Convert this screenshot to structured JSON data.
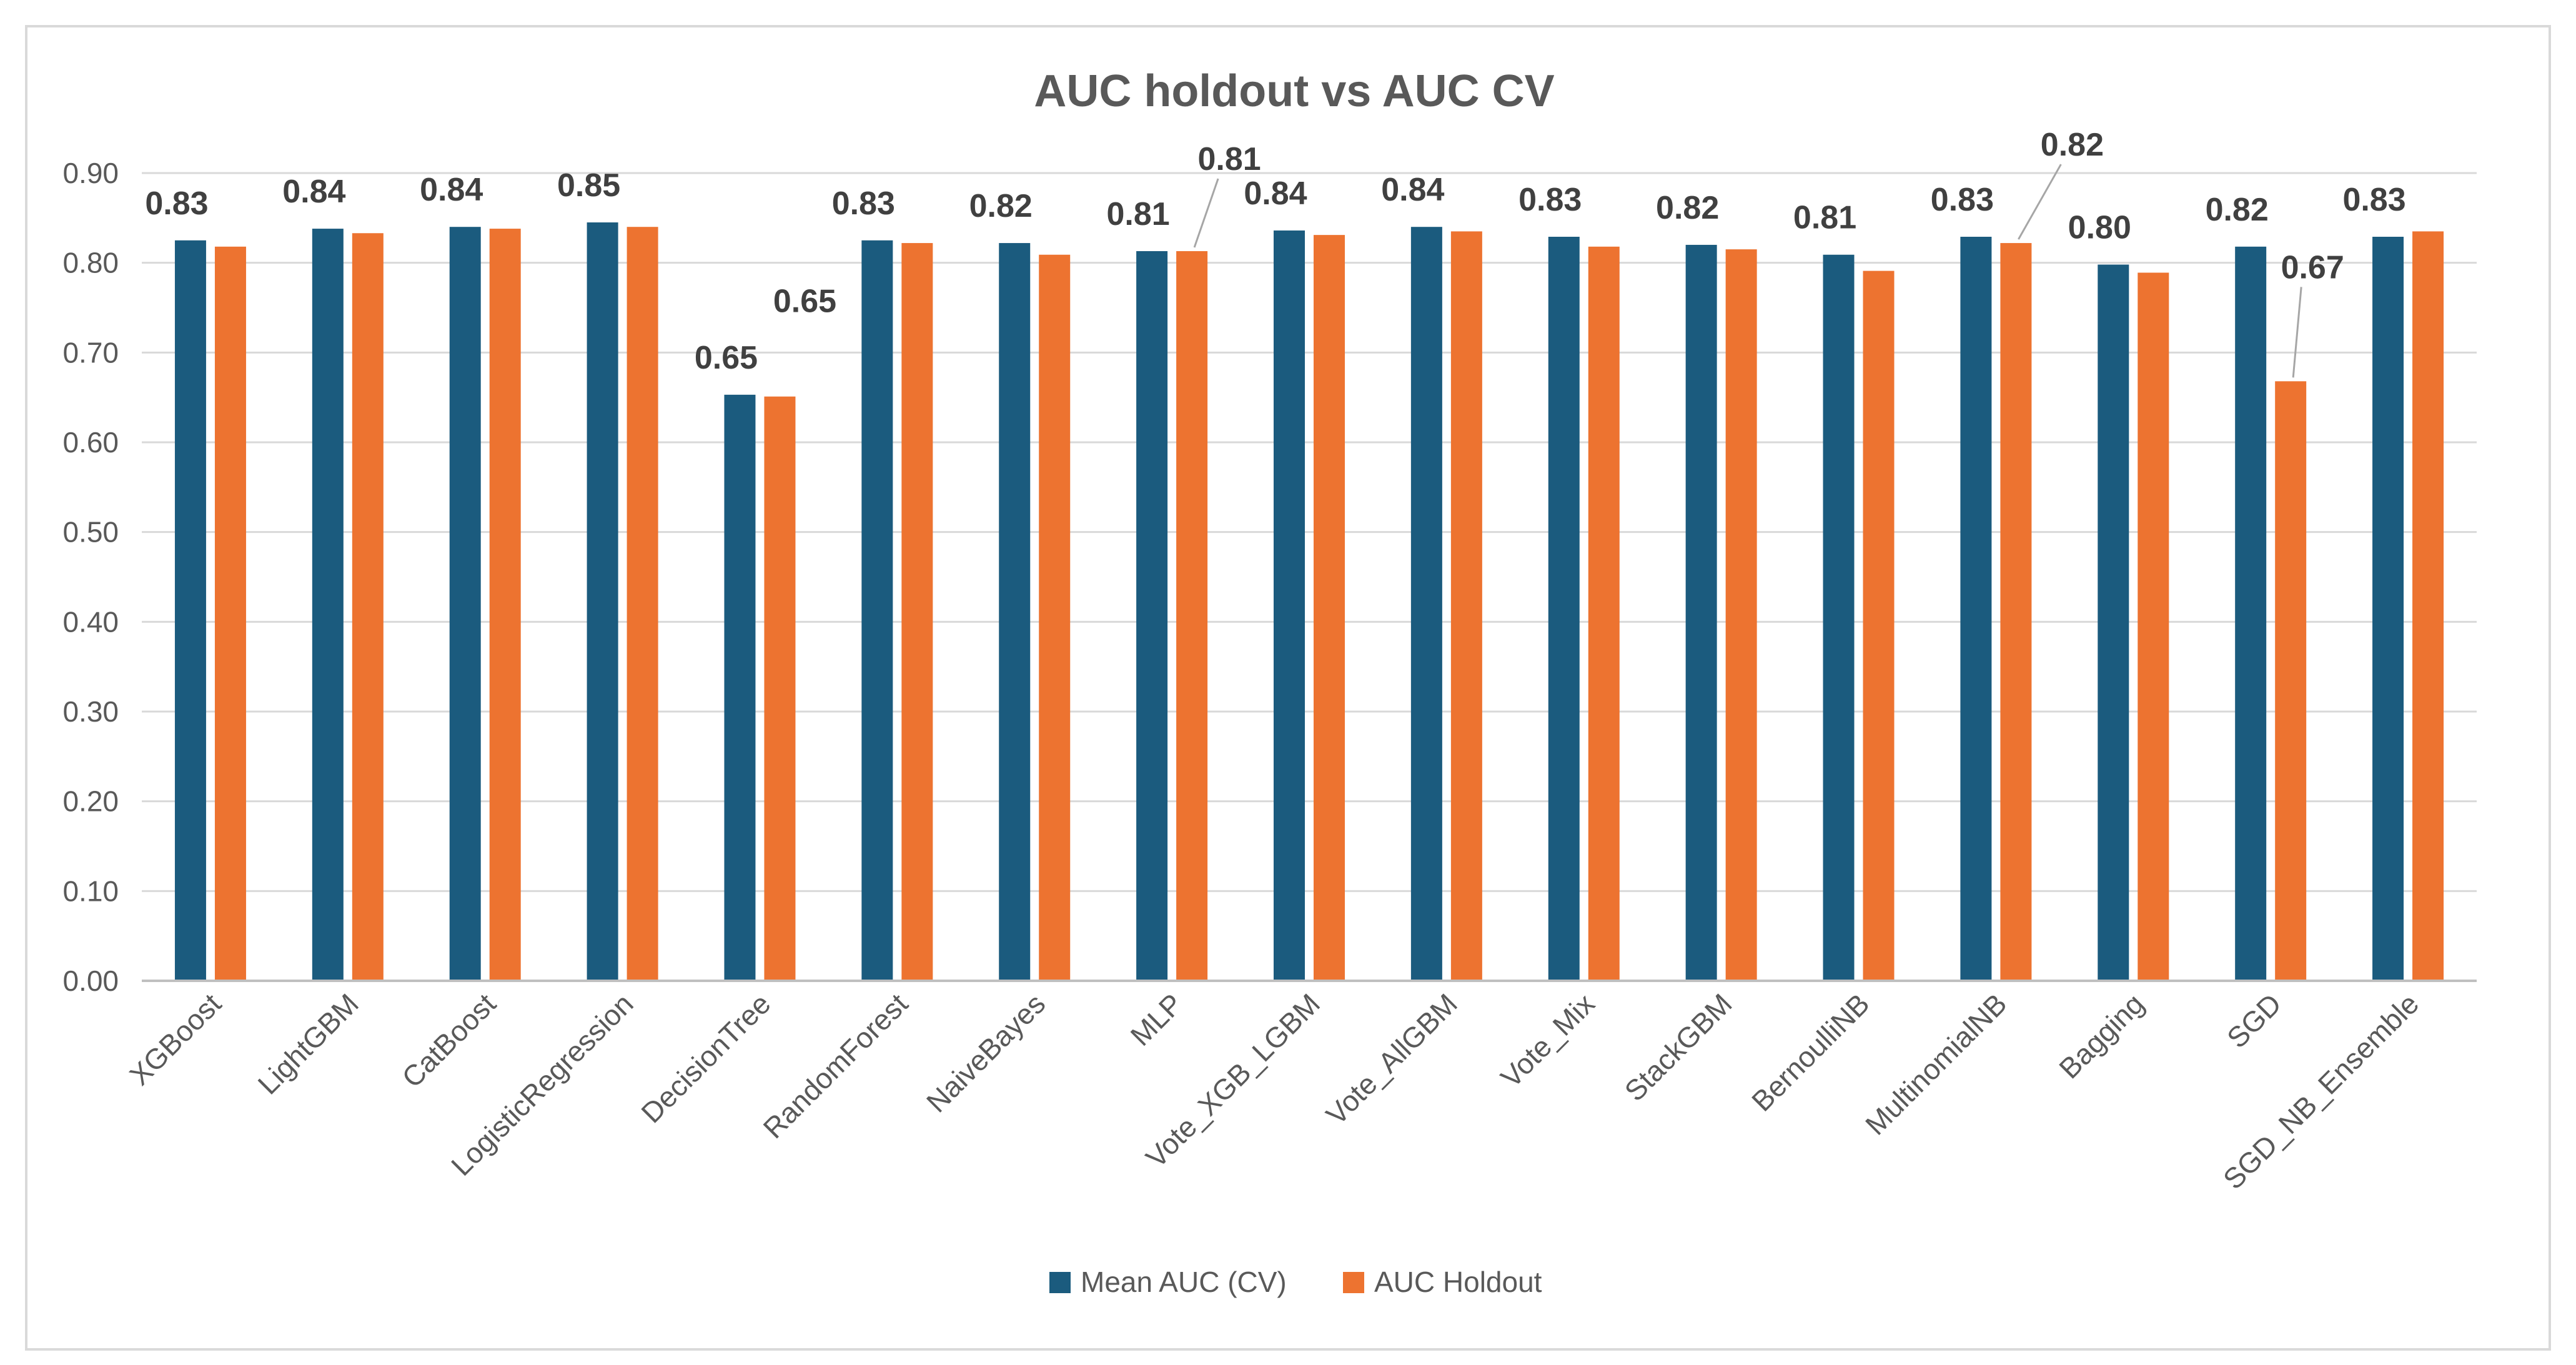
{
  "chart_data": {
    "type": "bar",
    "title": "AUC holdout vs AUC CV",
    "xlabel": "",
    "ylabel": "",
    "ylim": [
      0,
      0.9
    ],
    "yticks": [
      "0.00",
      "0.10",
      "0.20",
      "0.30",
      "0.40",
      "0.50",
      "0.60",
      "0.70",
      "0.80",
      "0.90"
    ],
    "grid": true,
    "legend_position": "bottom",
    "categories": [
      "XGBoost",
      "LightGBM",
      "CatBoost",
      "LogisticRegression",
      "DecisionTree",
      "RandomForest",
      "NaiveBayes",
      "MLP",
      "Vote_XGB_LGBM",
      "Vote_AllGBM",
      "Vote_Mix",
      "StackGBM",
      "BernoulliNB",
      "MultinomialNB",
      "Bagging",
      "SGD",
      "SGD_NB_Ensemble"
    ],
    "series": [
      {
        "name": "Mean AUC (CV)",
        "color": "#1b5b7e",
        "values": [
          0.825,
          0.838,
          0.84,
          0.845,
          0.653,
          0.825,
          0.822,
          0.813,
          0.836,
          0.84,
          0.829,
          0.82,
          0.809,
          0.829,
          0.798,
          0.818,
          0.829
        ],
        "labels": [
          "0.83",
          "0.84",
          "0.84",
          "0.85",
          "0.65",
          "0.83",
          "0.82",
          "0.81",
          "0.84",
          "0.84",
          "0.83",
          "0.82",
          "0.81",
          "0.83",
          "0.80",
          "0.82",
          "0.83"
        ]
      },
      {
        "name": "AUC Holdout",
        "color": "#ed7330",
        "values": [
          0.818,
          0.833,
          0.838,
          0.84,
          0.651,
          0.822,
          0.809,
          0.813,
          0.831,
          0.835,
          0.818,
          0.815,
          0.791,
          0.822,
          0.789,
          0.668,
          0.835
        ],
        "labels": [
          "",
          "",
          "",
          "",
          "0.65",
          "",
          "",
          "0.81",
          "",
          "",
          "",
          "",
          "",
          "0.82",
          "",
          "0.67",
          ""
        ]
      }
    ]
  }
}
